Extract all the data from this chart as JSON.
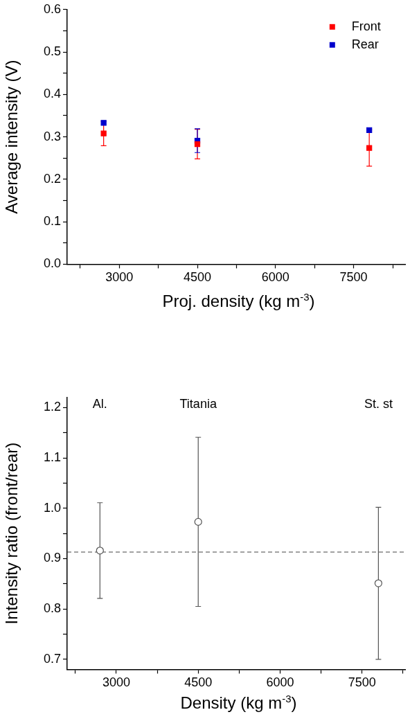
{
  "chart_data": [
    {
      "type": "scatter",
      "xlabel": "Proj. density (kg m$^{-3}$)",
      "ylabel": "Average intensity (V)",
      "x": [
        2700,
        4500,
        7800
      ],
      "marker": "square",
      "legend": "top right",
      "grid": false,
      "series": [
        {
          "name": "Front",
          "color": "#ff0000",
          "values": [
            0.308,
            0.283,
            0.274
          ],
          "errors": [
            0.029,
            0.035,
            0.043
          ]
        },
        {
          "name": "Rear",
          "color": "#0000cc",
          "values": [
            0.333,
            0.291,
            0.316
          ],
          "errors": [
            null,
            0.028,
            null
          ]
        }
      ],
      "xlim": [
        2000,
        8500
      ],
      "xticks": [
        {
          "value": 2250,
          "label": null
        },
        3000,
        {
          "value": 3750,
          "label": null
        },
        4500,
        {
          "value": 5250,
          "label": null
        },
        6000,
        {
          "value": 6750,
          "label": null
        },
        7500,
        {
          "value": 8250,
          "label": null
        }
      ],
      "ylim": [
        0,
        0.6
      ],
      "yticks": [
        {
          "value": 0,
          "label": "0.0"
        },
        {
          "value": 0.05,
          "label": null
        },
        0.1,
        {
          "value": 0.15,
          "label": null
        },
        0.2,
        {
          "value": 0.25,
          "label": null
        },
        0.3,
        {
          "value": 0.35,
          "label": null
        },
        0.4,
        {
          "value": 0.45,
          "label": null
        },
        0.5,
        {
          "value": 0.55,
          "label": null
        },
        0.6
      ]
    },
    {
      "type": "scatter",
      "xlabel": "Density (kg m$^{-3}$)",
      "ylabel": "Intensity ratio (front/rear)",
      "x": [
        2700,
        4500,
        7800
      ],
      "marker": "circle",
      "grid": false,
      "series": [
        {
          "color": "#555555",
          "values": [
            0.916,
            0.973,
            0.851
          ],
          "errors": [
            0.095,
            0.168,
            0.151
          ]
        }
      ],
      "ref_lines": [
        {
          "axis": "y",
          "value": 0.913,
          "color": "#444444",
          "line_style": "dashed"
        }
      ],
      "annotations": [
        "Al.",
        "Titania",
        "St. st"
      ],
      "xlim": [
        2100,
        8300
      ],
      "xticks": [
        {
          "value": 2250,
          "label": null
        },
        3000,
        {
          "value": 3750,
          "label": null
        },
        4500,
        {
          "value": 5250,
          "label": null
        },
        6000,
        {
          "value": 6750,
          "label": null
        },
        7500,
        {
          "value": 8250,
          "label": null
        }
      ],
      "ylim": [
        0.68,
        1.22
      ],
      "yticks": [
        0.7,
        {
          "value": 0.75,
          "label": null
        },
        0.8,
        {
          "value": 0.85,
          "label": null
        },
        0.9,
        {
          "value": 0.95,
          "label": null
        },
        {
          "value": 1.0,
          "label": "1.0"
        },
        {
          "value": 1.05,
          "label": null
        },
        1.1,
        {
          "value": 1.15,
          "label": null
        },
        1.2
      ]
    }
  ]
}
